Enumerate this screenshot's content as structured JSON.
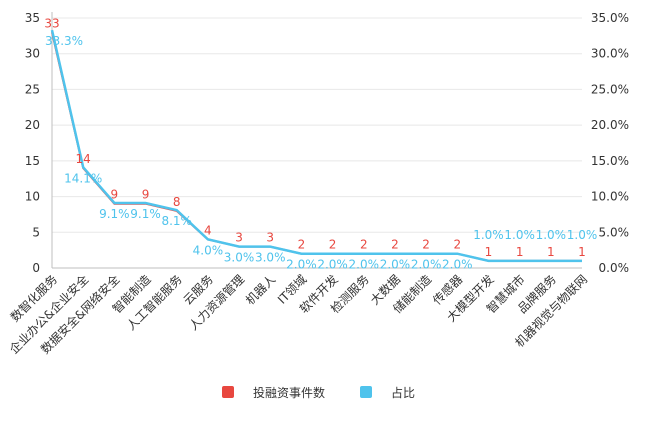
{
  "colors": {
    "count": "#e8473f",
    "share": "#4fc3ec",
    "axis": "#333333",
    "grid": "#e8e8e8"
  },
  "chart_data": {
    "type": "line",
    "categories": [
      "数智化服务",
      "企业办公&企业安全",
      "数据安全&网络安全",
      "智能制造",
      "人工智能服务",
      "云服务",
      "人力资源管理",
      "机器人",
      "IT领域",
      "软件开发",
      "检测服务",
      "大数据",
      "储能制造",
      "传感器",
      "大模型开发",
      "智慧城市",
      "品牌服务",
      "机器视觉与物联网"
    ],
    "series": [
      {
        "name": "投融资事件数",
        "axis": "left",
        "values": [
          33,
          14,
          9,
          9,
          8,
          4,
          3,
          3,
          2,
          2,
          2,
          2,
          2,
          2,
          1,
          1,
          1,
          1
        ],
        "labels": [
          "33",
          "14",
          "9",
          "9",
          "8",
          "4",
          "3",
          "3",
          "2",
          "2",
          "2",
          "2",
          "2",
          "2",
          "1",
          "1",
          "1",
          "1"
        ]
      },
      {
        "name": "占比",
        "axis": "right",
        "values": [
          33.3,
          14.1,
          9.1,
          9.1,
          8.1,
          4.0,
          3.0,
          3.0,
          2.0,
          2.0,
          2.0,
          2.0,
          2.0,
          2.0,
          1.0,
          1.0,
          1.0,
          1.0
        ],
        "labels": [
          "33.3%",
          "14.1%",
          "9.1%",
          "9.1%",
          "8.1%",
          "4.0%",
          "3.0%",
          "3.0%",
          "2.0%",
          "2.0%",
          "2.0%",
          "2.0%",
          "2.0%",
          "2.0%",
          "1.0%",
          "1.0%",
          "1.0%",
          "1.0%"
        ]
      }
    ],
    "y_left": {
      "lim": [
        0,
        35
      ],
      "ticks": [
        "0",
        "5",
        "10",
        "15",
        "20",
        "25",
        "30",
        "35"
      ]
    },
    "y_right": {
      "lim": [
        0,
        35
      ],
      "ticks": [
        "0.0%",
        "5.0%",
        "10.0%",
        "15.0%",
        "20.0%",
        "25.0%",
        "30.0%",
        "35.0%"
      ]
    },
    "legend": {
      "position": "bottom",
      "items": [
        "投融资事件数",
        "占比"
      ]
    }
  }
}
